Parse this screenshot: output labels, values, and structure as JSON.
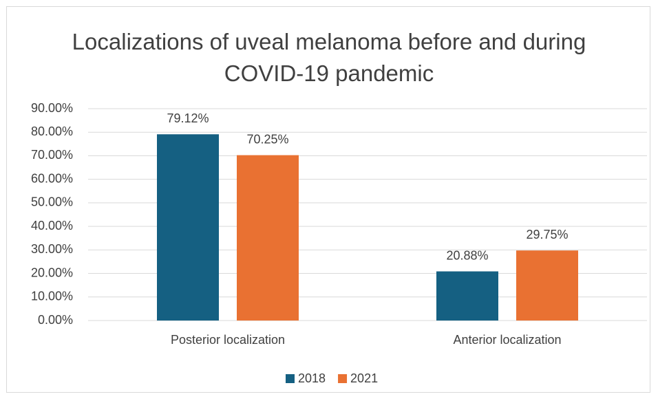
{
  "chart_data": {
    "type": "bar",
    "title": "Localizations of uveal melanoma before and during COVID-19 pandemic",
    "categories": [
      "Posterior localization",
      "Anterior localization"
    ],
    "series": [
      {
        "name": "2018",
        "color": "#156082",
        "values": [
          79.12,
          20.88
        ],
        "value_labels": [
          "79.12%",
          "20.88%"
        ]
      },
      {
        "name": "2021",
        "color": "#e97132",
        "values": [
          70.25,
          29.75
        ],
        "value_labels": [
          "70.25%",
          "29.75%"
        ]
      }
    ],
    "ylim": [
      0,
      90
    ],
    "yticks": [
      {
        "value": 0,
        "label": "0.00%"
      },
      {
        "value": 10,
        "label": "10.00%"
      },
      {
        "value": 20,
        "label": "20.00%"
      },
      {
        "value": 30,
        "label": "30.00%"
      },
      {
        "value": 40,
        "label": "40.00%"
      },
      {
        "value": 50,
        "label": "50.00%"
      },
      {
        "value": 60,
        "label": "60.00%"
      },
      {
        "value": 70,
        "label": "70.00%"
      },
      {
        "value": 80,
        "label": "80.00%"
      },
      {
        "value": 90,
        "label": "90.00%"
      }
    ],
    "grid": true,
    "legend": "bottom"
  }
}
